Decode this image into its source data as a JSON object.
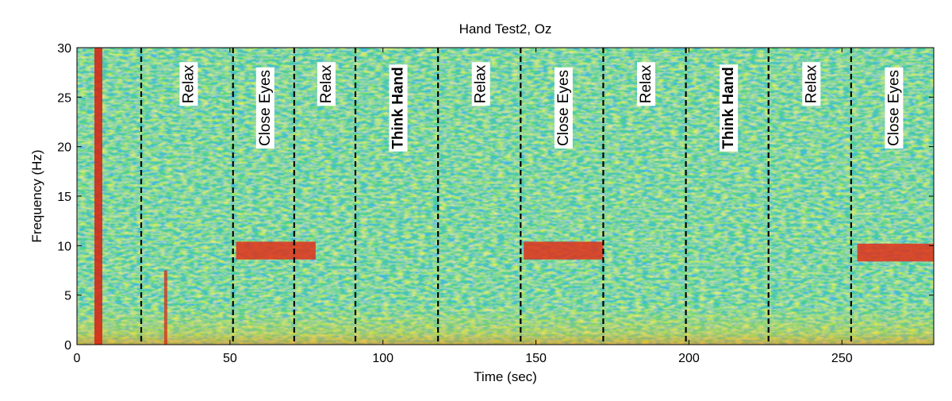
{
  "chart_data": {
    "type": "heatmap",
    "title": "Hand Test2, Oz",
    "xlabel": "Time (sec)",
    "ylabel": "Frequency (Hz)",
    "xlim": [
      0,
      280
    ],
    "ylim": [
      0,
      30
    ],
    "xticks": [
      0,
      50,
      100,
      150,
      200,
      250
    ],
    "yticks": [
      0,
      5,
      10,
      15,
      20,
      25,
      30
    ],
    "colormap": "jet",
    "boundaries_sec": [
      21,
      51,
      71,
      91,
      118,
      145,
      172,
      199,
      226,
      253
    ],
    "segments": [
      {
        "start": 21,
        "end": 51,
        "label": "Relax",
        "bold": false
      },
      {
        "start": 51,
        "end": 71,
        "label": "Close Eyes",
        "bold": false
      },
      {
        "start": 71,
        "end": 91,
        "label": "Relax",
        "bold": false
      },
      {
        "start": 91,
        "end": 118,
        "label": "Think Hand",
        "bold": true
      },
      {
        "start": 118,
        "end": 145,
        "label": "Relax",
        "bold": false
      },
      {
        "start": 145,
        "end": 172,
        "label": "Close Eyes",
        "bold": false
      },
      {
        "start": 172,
        "end": 199,
        "label": "Relax",
        "bold": false
      },
      {
        "start": 199,
        "end": 226,
        "label": "Think Hand",
        "bold": true
      },
      {
        "start": 226,
        "end": 253,
        "label": "Relax",
        "bold": false
      },
      {
        "start": 253,
        "end": 280,
        "label": "Close Eyes",
        "bold": false
      }
    ],
    "alpha_bands": [
      {
        "start": 52,
        "end": 78,
        "freq_center": 9.5
      },
      {
        "start": 146,
        "end": 172,
        "freq_center": 9.5
      },
      {
        "start": 255,
        "end": 280,
        "freq_center": 9.3
      }
    ],
    "artifacts": [
      {
        "time": 7,
        "type": "broadband"
      },
      {
        "time": 29,
        "type": "low-frequency"
      }
    ]
  },
  "colors": {
    "background_field": "#4cd28c",
    "alpha_band": "#e0301a",
    "artifact": "#d8200f",
    "boundary_line": "#000000"
  }
}
